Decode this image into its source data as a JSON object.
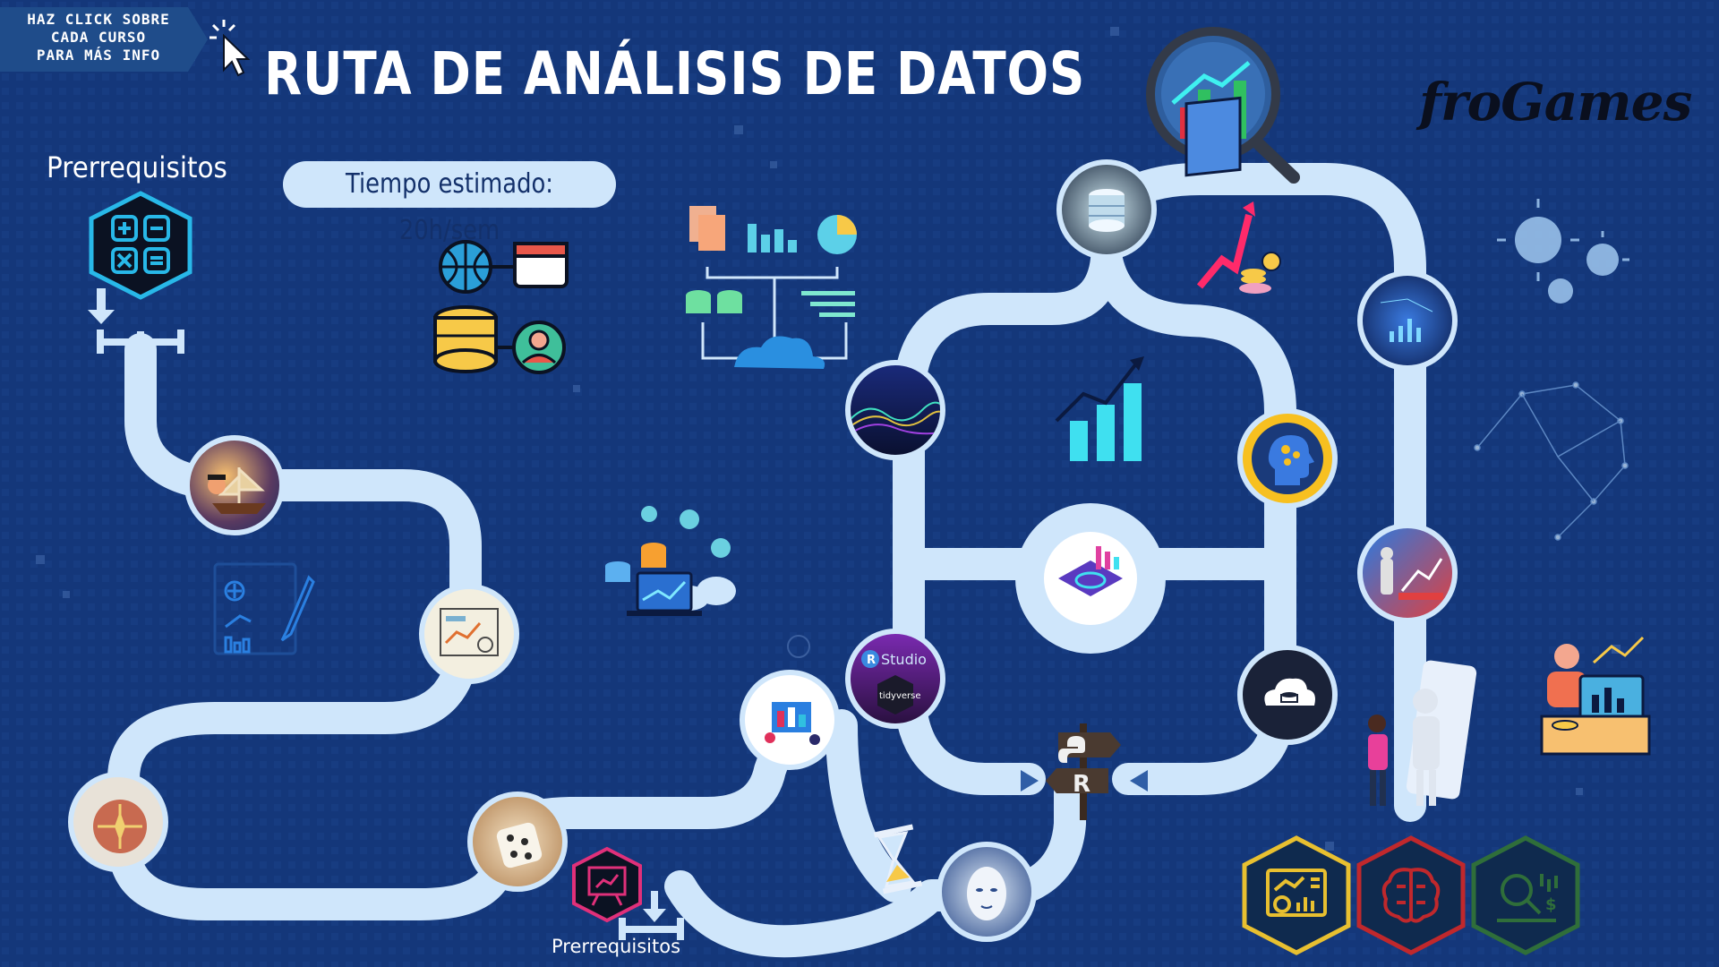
{
  "header": {
    "tag_line1": "HAZ CLICK SOBRE",
    "tag_line2": "CADA CURSO",
    "tag_line3": "PARA MÁS INFO",
    "title": "RUTA DE ANÁLISIS DE DATOS",
    "time_estimate": "Tiempo estimado: 20h/sem",
    "brand": "froGames"
  },
  "prerequisites": {
    "top_label": "Prerrequisitos",
    "bottom_label": "Prerrequisitos"
  },
  "courses": [
    {
      "id": "pirates-course",
      "icon": "pirate-ship-icon"
    },
    {
      "id": "dashboard-sketch-course",
      "icon": "dashboard-sketch-icon"
    },
    {
      "id": "compass-course",
      "icon": "compass-icon"
    },
    {
      "id": "dice-course",
      "icon": "dice-icon"
    },
    {
      "id": "data-team-course",
      "icon": "data-team-icon"
    },
    {
      "id": "wave-course",
      "icon": "wave-landscape-icon"
    },
    {
      "id": "r-studio-course",
      "icon": "rstudio-tidyverse-icon"
    },
    {
      "id": "ai-face-course",
      "icon": "ai-face-icon"
    },
    {
      "id": "database-course",
      "icon": "database-glow-icon"
    },
    {
      "id": "central-hub-course",
      "icon": "tech-hub-icon"
    },
    {
      "id": "mind-course",
      "icon": "brain-head-icon"
    },
    {
      "id": "cloud-course",
      "icon": "cloud-database-icon"
    },
    {
      "id": "network-course",
      "icon": "network-chart-icon"
    },
    {
      "id": "robot-course",
      "icon": "robot-analytics-icon"
    }
  ],
  "signpost": {
    "top": "Python",
    "bottom": "R"
  },
  "colors": {
    "background": "#14377a",
    "path": "#cfe6fb",
    "title": "#ffffff",
    "hex_blue": "#0f2a4e",
    "hex_yellow": "#e8c030",
    "hex_red": "#c0282c",
    "hex_green": "#2f6e3a"
  }
}
